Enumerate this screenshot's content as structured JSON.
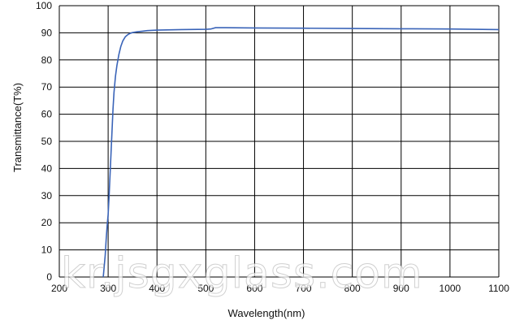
{
  "chart_data": {
    "type": "line",
    "title": "",
    "xlabel": "Wavelength(nm)",
    "ylabel": "Transmittance(T%)",
    "xlim": [
      200,
      1100
    ],
    "ylim": [
      0,
      100
    ],
    "xticks": [
      200,
      300,
      400,
      500,
      600,
      700,
      800,
      900,
      1000,
      1100
    ],
    "yticks": [
      0,
      10,
      20,
      30,
      40,
      50,
      60,
      70,
      80,
      90,
      100
    ],
    "grid": true,
    "legend": "none",
    "line_color": "#3a64b8",
    "series": [
      {
        "x": [
          290,
          292,
          294,
          296,
          298,
          300,
          302,
          304,
          306,
          308,
          310,
          312,
          315,
          318,
          322,
          326,
          330,
          335,
          340,
          345,
          350,
          360,
          370,
          380,
          400,
          450,
          500,
          510,
          520,
          540,
          600,
          700,
          800,
          900,
          1000,
          1100
        ],
        "y": [
          0,
          4,
          8,
          14,
          19,
          23,
          30,
          38,
          46,
          54,
          62,
          68,
          74,
          78,
          82,
          85,
          87,
          88.5,
          89.3,
          89.8,
          90.1,
          90.4,
          90.6,
          90.8,
          91.0,
          91.2,
          91.3,
          91.4,
          91.9,
          91.9,
          91.8,
          91.7,
          91.6,
          91.5,
          91.4,
          91.2
        ]
      }
    ]
  },
  "watermark_text": "kr.jsgxglass.com"
}
